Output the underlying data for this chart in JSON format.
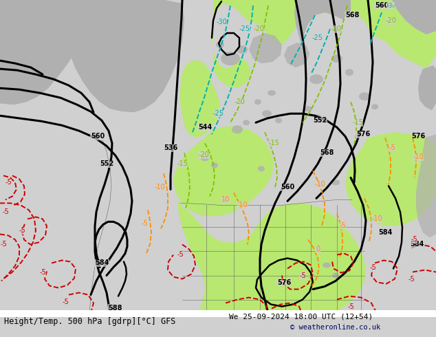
{
  "title_left": "Height/Temp. 500 hPa [gdrp][°C] GFS",
  "title_right": "We 25-09-2024 18:00 UTC (12+54)",
  "copyright": "© weatheronline.co.uk",
  "bg_color": "#d0d0d0",
  "map_bg": "#d0d0d0",
  "green_fill": "#b8e870",
  "gray_land": "#b0b0b0",
  "footer_bg": "#ffffff",
  "black": "#000000",
  "red": "#cc0000",
  "orange": "#ff8c00",
  "teal": "#00b0b0",
  "lime": "#80c000",
  "title_fontsize": 8.5,
  "copy_fontsize": 7.5,
  "lbl_fontsize": 7
}
